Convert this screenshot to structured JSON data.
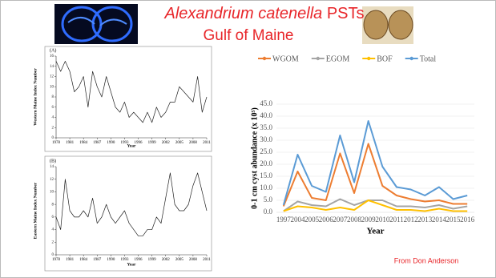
{
  "slide": {
    "title_italic": "Alexandrium catenella",
    "title_rest": "PSTs",
    "subtitle": "Gulf of Maine",
    "credit": "From Don Anderson"
  },
  "chart_data": [
    {
      "type": "line",
      "label": "(A)",
      "ylabel": "Western Maine Index Number",
      "xlabel": "Year",
      "x": [
        1978,
        1979,
        1980,
        1981,
        1982,
        1983,
        1984,
        1985,
        1986,
        1987,
        1988,
        1989,
        1990,
        1991,
        1992,
        1993,
        1994,
        1995,
        1996,
        1997,
        1998,
        1999,
        2000,
        2001,
        2002,
        2003,
        2004,
        2005,
        2006,
        2007,
        2008,
        2009,
        2010,
        2011
      ],
      "xlim": [
        1978,
        2011
      ],
      "xticks": [
        1978,
        1981,
        1984,
        1987,
        1990,
        1993,
        1996,
        1999,
        2002,
        2005,
        2008,
        2011
      ],
      "ylim": [
        0,
        16
      ],
      "yticks": [
        0,
        2,
        4,
        6,
        8,
        10,
        12,
        14,
        16
      ],
      "series": [
        {
          "color": "#222222",
          "values": [
            15,
            13,
            15,
            13,
            9,
            10,
            12,
            6,
            13,
            10,
            8,
            12,
            9,
            6,
            5,
            7,
            4,
            5,
            4,
            3,
            5,
            3,
            6,
            4,
            5,
            7,
            7,
            10,
            9,
            8,
            7,
            12,
            5,
            8
          ]
        }
      ]
    },
    {
      "type": "line",
      "label": "(B)",
      "ylabel": "Eastern Maine Index Number",
      "xlabel": "Year",
      "x": [
        1978,
        1979,
        1980,
        1981,
        1982,
        1983,
        1984,
        1985,
        1986,
        1987,
        1988,
        1989,
        1990,
        1991,
        1992,
        1993,
        1994,
        1995,
        1996,
        1997,
        1998,
        1999,
        2000,
        2001,
        2002,
        2003,
        2004,
        2005,
        2006,
        2007,
        2008,
        2009,
        2010,
        2011
      ],
      "xlim": [
        1978,
        2011
      ],
      "xticks": [
        1978,
        1981,
        1984,
        1987,
        1990,
        1993,
        1996,
        1999,
        2002,
        2005,
        2008,
        2011
      ],
      "ylim": [
        0,
        14
      ],
      "yticks": [
        0,
        2,
        4,
        6,
        8,
        10,
        12,
        14
      ],
      "series": [
        {
          "color": "#222222",
          "values": [
            6,
            4,
            12,
            7,
            6,
            6,
            7,
            6,
            9,
            5,
            6,
            8,
            6,
            5,
            6,
            7,
            5,
            4,
            3,
            3,
            4,
            4,
            6,
            5,
            9,
            13,
            8,
            7,
            7,
            8,
            11,
            13,
            10,
            7
          ]
        }
      ]
    },
    {
      "type": "line",
      "ylabel": "0-1 cm cyst abundance (x 10⁵)",
      "xlabel": "Year",
      "legend": "top",
      "categories": [
        "1997",
        "2004",
        "2005",
        "2006",
        "2007",
        "2008",
        "2009",
        "2010",
        "2011",
        "2012",
        "2013",
        "2014",
        "2015",
        "2016"
      ],
      "ylim": [
        0,
        45
      ],
      "yticks": [
        {
          "value": 0,
          "label": "0.0"
        },
        {
          "value": 5,
          "label": "5.0"
        },
        {
          "value": 10,
          "label": "10.0"
        },
        {
          "value": 15,
          "label": "15.0"
        },
        {
          "value": 20,
          "label": "20.0"
        },
        {
          "value": 25,
          "label": "25.0"
        },
        {
          "value": 30,
          "label": "30.0"
        },
        {
          "value": 35,
          "label": "35.0"
        },
        {
          "value": 40,
          "label": "40.0"
        },
        {
          "value": 45,
          "label": "45.0"
        }
      ],
      "series": [
        {
          "name": "WGOM",
          "color": "#ed7d31",
          "values": [
            2.5,
            17,
            6,
            5,
            24.5,
            8,
            28.5,
            11,
            7,
            5.5,
            4.5,
            5,
            3.5,
            3.5
          ]
        },
        {
          "name": "EGOM",
          "color": "#a5a5a5",
          "values": [
            0.5,
            4.5,
            3,
            2.5,
            5.5,
            3,
            5,
            5,
            2.5,
            2.5,
            2,
            3,
            1.5,
            2.5
          ]
        },
        {
          "name": "BOF",
          "color": "#ffc000",
          "values": [
            0.5,
            2.5,
            2,
            1,
            2,
            1,
            5,
            3,
            1,
            1,
            0.5,
            1.5,
            0.5,
            0.5
          ]
        },
        {
          "name": "Total",
          "color": "#5b9bd5",
          "values": [
            3,
            24,
            11,
            8.5,
            32,
            12.5,
            38,
            19,
            10.5,
            9.5,
            7,
            10.5,
            5.5,
            7
          ]
        }
      ]
    }
  ]
}
